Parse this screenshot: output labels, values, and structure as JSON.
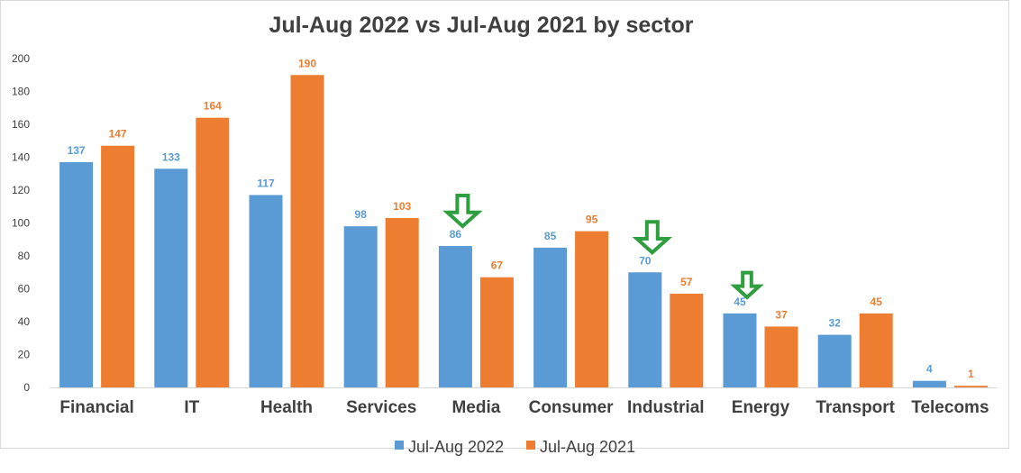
{
  "chart_data": {
    "type": "bar",
    "title": "Jul-Aug 2022 vs Jul-Aug 2021 by sector",
    "categories": [
      "Financial",
      "IT",
      "Health",
      "Services",
      "Media",
      "Consumer",
      "Industrial",
      "Energy",
      "Transport",
      "Telecoms"
    ],
    "series": [
      {
        "name": "Jul-Aug 2022",
        "color": "#5b9bd5",
        "values": [
          137,
          133,
          117,
          98,
          86,
          85,
          70,
          45,
          32,
          4
        ]
      },
      {
        "name": "Jul-Aug 2021",
        "color": "#ed7d31",
        "values": [
          147,
          164,
          190,
          103,
          67,
          95,
          57,
          37,
          45,
          1
        ]
      }
    ],
    "ylim": [
      0,
      200
    ],
    "yticks": [
      0,
      20,
      40,
      60,
      80,
      100,
      120,
      140,
      160,
      180,
      200
    ],
    "grid": false,
    "legend": "bottom",
    "annotations": [
      {
        "type": "down-arrow",
        "category": "Media",
        "color": "#2e9e3e"
      },
      {
        "type": "down-arrow",
        "category": "Industrial",
        "color": "#2e9e3e"
      },
      {
        "type": "down-arrow",
        "category": "Energy",
        "color": "#2e9e3e"
      }
    ]
  }
}
